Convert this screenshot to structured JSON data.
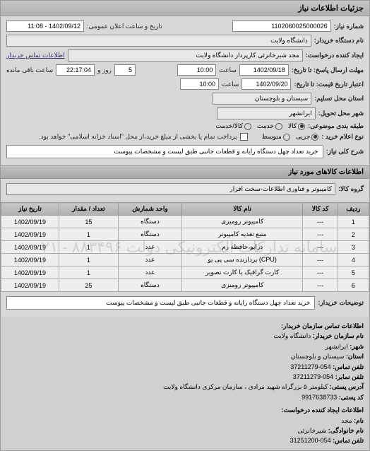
{
  "header": {
    "title": "جزئیات اطلاعات نیاز"
  },
  "form": {
    "req_no_label": "شماره نیاز:",
    "req_no": "1102060025000026",
    "announce_label": "تاریخ و ساعت اعلان عمومی:",
    "announce_value": "1402/09/12 - 11:08",
    "buyer_name_label": "نام دستگاه خریدار:",
    "buyer_name": "دانشگاه ولایت",
    "creator_label": "ایجاد کننده درخواست:",
    "creator": "مجد شیرخانزئی کارپرداز دانشگاه ولایت",
    "buyer_contact_label": "اطلاعات تماس خریدار",
    "deadline_label": "مهلت ارسال پاسخ: تا تاریخ:",
    "deadline_date": "1402/09/18",
    "time_label": "ساعت",
    "deadline_time": "10:00",
    "remaining_days": "5",
    "day_and": "روز و",
    "remaining_time": "22:17:04",
    "remaining_suffix": "ساعت باقی مانده",
    "validity_label": "اعتبار تاریخ قیمت: تا تاریخ:",
    "validity_date": "1402/09/20",
    "validity_time": "10:00",
    "province_label": "استان محل تسلیم:",
    "province": "سیستان و بلوچستان",
    "city_label": "شهر محل تحویل:",
    "city": "ایرانشهر",
    "subject_group_label": "طبقه بندی موضوعی:",
    "goods": "کالا",
    "service": "خدمت",
    "both": "کالا/خدمت",
    "purchase_type_label": "نوع اعلام خرید :",
    "small": "جزیی",
    "medium": "متوسط",
    "payment_note": "پرداخت تمام یا بخشی از مبلغ خرید،از محل \"اسناد خزانه اسلامی\" خواهد بود.",
    "need_title_label": "شرح کلی نیاز:",
    "need_title": "خرید تعداد چهل دستگاه رایانه و قطعات جانبی طبق لیست و مشخصات پیوست"
  },
  "goods_section": {
    "header": "اطلاعات کالاهای مورد نیاز",
    "group_label": "گروه کالا:",
    "group_value": "کامپیوتر و فناوری اطلاعات-سخت افزار"
  },
  "table": {
    "columns": [
      "ردیف",
      "کد کالا",
      "نام کالا",
      "واحد شمارش",
      "تعداد / مقدار",
      "تاریخ نیاز"
    ],
    "rows": [
      [
        "1",
        "---",
        "کامپیوتر رومیزی",
        "دستگاه",
        "15",
        "1402/09/19"
      ],
      [
        "2",
        "---",
        "منبع تغذیه کامپیوتر",
        "دستگاه",
        "1",
        "1402/09/19"
      ],
      [
        "3",
        "---",
        "درایو،حافظه رم",
        "عدد",
        "1",
        "1402/09/19"
      ],
      [
        "4",
        "---",
        "(CPU) پردازنده سی پی یو",
        "عدد",
        "1",
        "1402/09/19"
      ],
      [
        "5",
        "---",
        "کارت گرافیک یا کارت تصویر",
        "عدد",
        "1",
        "1402/09/19"
      ],
      [
        "6",
        "---",
        "کامپیوتر رومیزی",
        "دستگاه",
        "25",
        "1402/09/19"
      ]
    ],
    "watermark": "سامانه تدارکات الکترونیکی دولت ۸۸۳۴۹۶ - ۰۲۱"
  },
  "buyer_note": {
    "label": "توضیحات خریدار:",
    "text": "خرید تعداد چهل دستگاه رایانه و قطعات جانبی طبق لیست و مشخصات پیوست"
  },
  "contact": {
    "section1_title": "اطلاعات تماس سازمان خریدار:",
    "org_name_label": "نام سازمان خریدار:",
    "org_name": "دانشگاه ولایت",
    "city_label": "شهر:",
    "city": "ایرانشهر",
    "province_label": "استان:",
    "province": "سیستان و بلوچستان",
    "phone_label": "تلفن تماس:",
    "phone": "054-37211279",
    "fax_label": "تلفن نمابر:",
    "fax": "054-37211279",
    "address_label": "آدرس پستی:",
    "address": "کیلومتر ۵ بزرگراه شهید مرادی ، سازمان مرکزی دانشگاه ولایت",
    "postcode_label": "کد پستی:",
    "postcode": "9917638733",
    "section2_title": "اطلاعات ایجاد کننده درخواست:",
    "name_label": "نام:",
    "name": "مجد",
    "family_label": "نام خانوادگی:",
    "family": "شیرخانزئی",
    "contact_phone_label": "تلفن تماس:",
    "contact_phone": "054-31251200"
  }
}
